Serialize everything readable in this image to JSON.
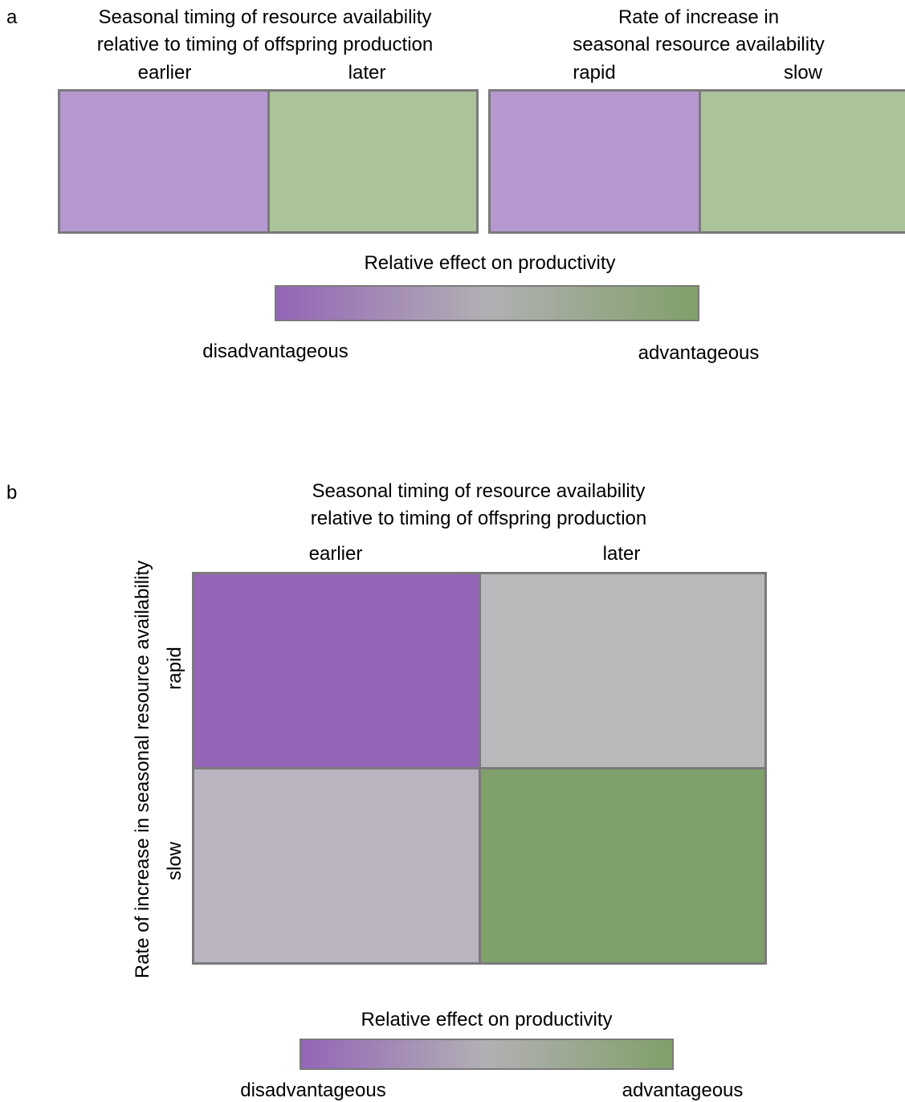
{
  "colors": {
    "purple_light": "#b598d0",
    "green_light": "#aac398",
    "purple_strong": "#9465b7",
    "grey": "#b9b9bb",
    "grey_purple": "#bab4c1",
    "green_strong": "#80a069",
    "border": "#7a7a7a"
  },
  "panel_a": {
    "label": "a",
    "left": {
      "title_line1": "Seasonal timing of resource availability",
      "title_line2": "relative to timing of offspring production",
      "col1": "earlier",
      "col2": "later",
      "cell_colors": [
        "purple_light",
        "green_light"
      ]
    },
    "right": {
      "title_line1": "Rate of increase in",
      "title_line2": "seasonal resource availability",
      "col1": "rapid",
      "col2": "slow",
      "cell_colors": [
        "purple_light",
        "green_light"
      ]
    },
    "legend": {
      "title": "Relative effect on productivity",
      "low": "disadvantageous",
      "high": "advantageous"
    }
  },
  "panel_b": {
    "label": "b",
    "title_line1": "Seasonal timing of resource availability",
    "title_line2": "relative to timing of offspring production",
    "col1": "earlier",
    "col2": "later",
    "y_title": "Rate of increase in seasonal resource availability",
    "row1": "rapid",
    "row2": "slow",
    "cells": [
      {
        "row": "rapid",
        "col": "earlier",
        "color": "purple_strong"
      },
      {
        "row": "rapid",
        "col": "later",
        "color": "grey"
      },
      {
        "row": "slow",
        "col": "earlier",
        "color": "grey_purple"
      },
      {
        "row": "slow",
        "col": "later",
        "color": "green_strong"
      }
    ],
    "legend": {
      "title": "Relative effect on productivity",
      "low": "disadvantageous",
      "high": "advantageous"
    }
  }
}
